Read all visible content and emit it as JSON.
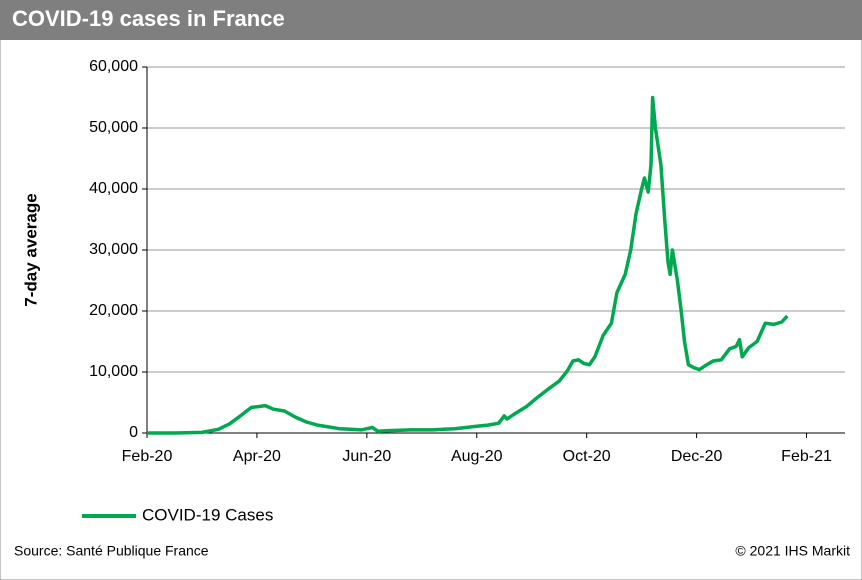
{
  "chart_data": {
    "type": "line",
    "title": "COVID-19 cases in France",
    "y_label": "7-day average",
    "source": "Source: Santé Publique France",
    "copyright": "© 2021 IHS Markit",
    "xlim": [
      0,
      12.7
    ],
    "xticks": [
      {
        "value": 0,
        "label": "Feb-20"
      },
      {
        "value": 2,
        "label": "Apr-20"
      },
      {
        "value": 4,
        "label": "Jun-20"
      },
      {
        "value": 6,
        "label": "Aug-20"
      },
      {
        "value": 8,
        "label": "Oct-20"
      },
      {
        "value": 10,
        "label": "Dec-20"
      },
      {
        "value": 12,
        "label": "Feb-21"
      }
    ],
    "ylim": [
      0,
      60000
    ],
    "yticks": [
      0,
      {
        "value": 10000,
        "label": "10,000"
      },
      {
        "value": 20000,
        "label": "20,000"
      },
      {
        "value": 30000,
        "label": "30,000"
      },
      {
        "value": 40000,
        "label": "40,000"
      },
      {
        "value": 50000,
        "label": "50,000"
      },
      {
        "value": 60000,
        "label": "60,000"
      }
    ],
    "grid": true,
    "legend": "bottom-left",
    "x": [
      0,
      0.5,
      1,
      1.3,
      1.5,
      1.7,
      1.9,
      2,
      2.15,
      2.3,
      2.5,
      2.7,
      2.9,
      3.1,
      3.3,
      3.5,
      3.7,
      3.9,
      4,
      4.1,
      4.2,
      4.4,
      4.6,
      4.8,
      5,
      5.2,
      5.4,
      5.6,
      5.8,
      6,
      6.2,
      6.4,
      6.5,
      6.55,
      6.7,
      6.9,
      7.1,
      7.3,
      7.5,
      7.65,
      7.75,
      7.85,
      7.95,
      8.05,
      8.15,
      8.3,
      8.45,
      8.55,
      8.7,
      8.8,
      8.9,
      9,
      9.05,
      9.12,
      9.17,
      9.2,
      9.25,
      9.35,
      9.42,
      9.48,
      9.52,
      9.56,
      9.65,
      9.72,
      9.78,
      9.85,
      9.95,
      10.05,
      10.15,
      10.3,
      10.45,
      10.6,
      10.72,
      10.78,
      10.83,
      10.95,
      11.1,
      11.25,
      11.4,
      11.55,
      11.65
    ],
    "series": [
      {
        "name": "COVID-19 Cases",
        "color": "#00a84f",
        "values": [
          0,
          0,
          100,
          600,
          1500,
          2800,
          4200,
          4300,
          4500,
          3900,
          3600,
          2600,
          1800,
          1300,
          1000,
          700,
          600,
          500,
          700,
          900,
          300,
          400,
          450,
          500,
          500,
          500,
          600,
          700,
          900,
          1100,
          1300,
          1600,
          2800,
          2300,
          3200,
          4300,
          5800,
          7200,
          8500,
          10200,
          11800,
          12000,
          11400,
          11200,
          12500,
          16000,
          18000,
          23000,
          26000,
          30000,
          36000,
          40000,
          41800,
          39500,
          44000,
          55000,
          50000,
          44000,
          35000,
          28000,
          26000,
          30000,
          25000,
          20000,
          15000,
          11200,
          10700,
          10400,
          11000,
          11800,
          12000,
          13800,
          14200,
          15300,
          12500,
          14000,
          15000,
          18000,
          17800,
          18200,
          19200
        ]
      }
    ]
  }
}
